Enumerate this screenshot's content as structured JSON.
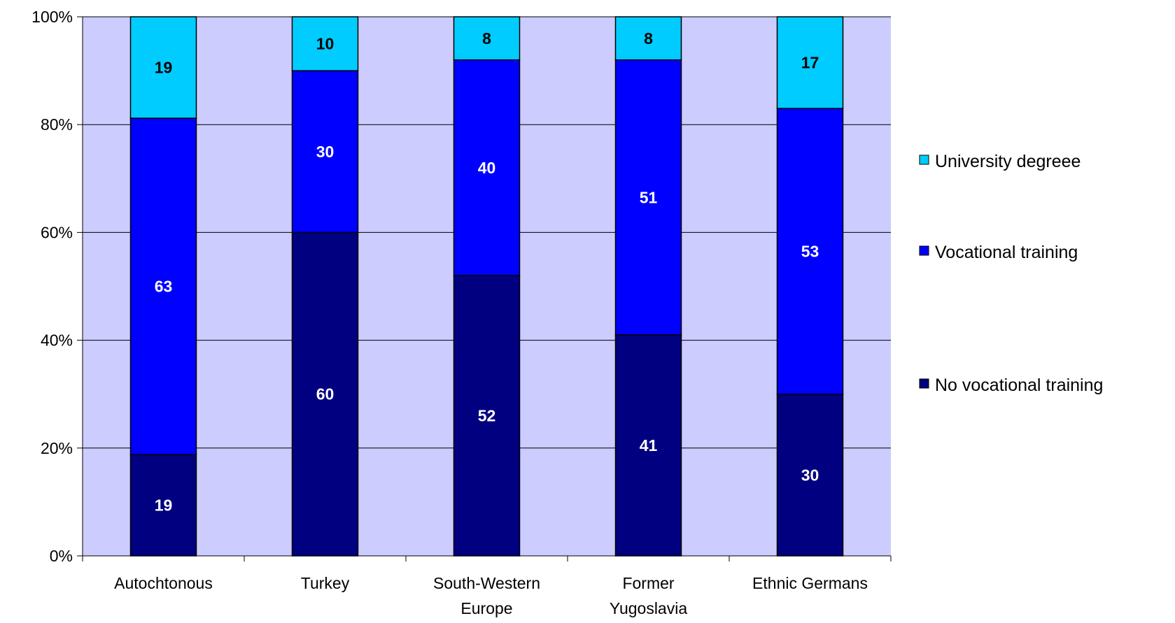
{
  "chart_data": {
    "type": "bar",
    "stacked": true,
    "percent_stacked": true,
    "categories": [
      [
        "Autochtonous"
      ],
      [
        "Turkey"
      ],
      [
        "South-Western",
        "Europe"
      ],
      [
        "Former",
        "Yugoslavia"
      ],
      [
        "Ethnic Germans"
      ]
    ],
    "series": [
      {
        "name": "No vocational training",
        "values": [
          19,
          60,
          52,
          41,
          30
        ],
        "color": "#000080",
        "label_color": "#ffffff"
      },
      {
        "name": "Vocational training",
        "values": [
          63,
          30,
          40,
          51,
          53
        ],
        "color": "#0000ff",
        "label_color": "#ffffff"
      },
      {
        "name": "University degreee",
        "values": [
          19,
          10,
          8,
          8,
          17
        ],
        "color": "#00ccff",
        "label_color": "#000000"
      }
    ],
    "y_ticks": [
      "0%",
      "20%",
      "40%",
      "60%",
      "80%",
      "100%"
    ],
    "ylim": [
      0,
      100
    ],
    "grid": true,
    "legend_position": "right",
    "plot_background": "#ccccff"
  }
}
